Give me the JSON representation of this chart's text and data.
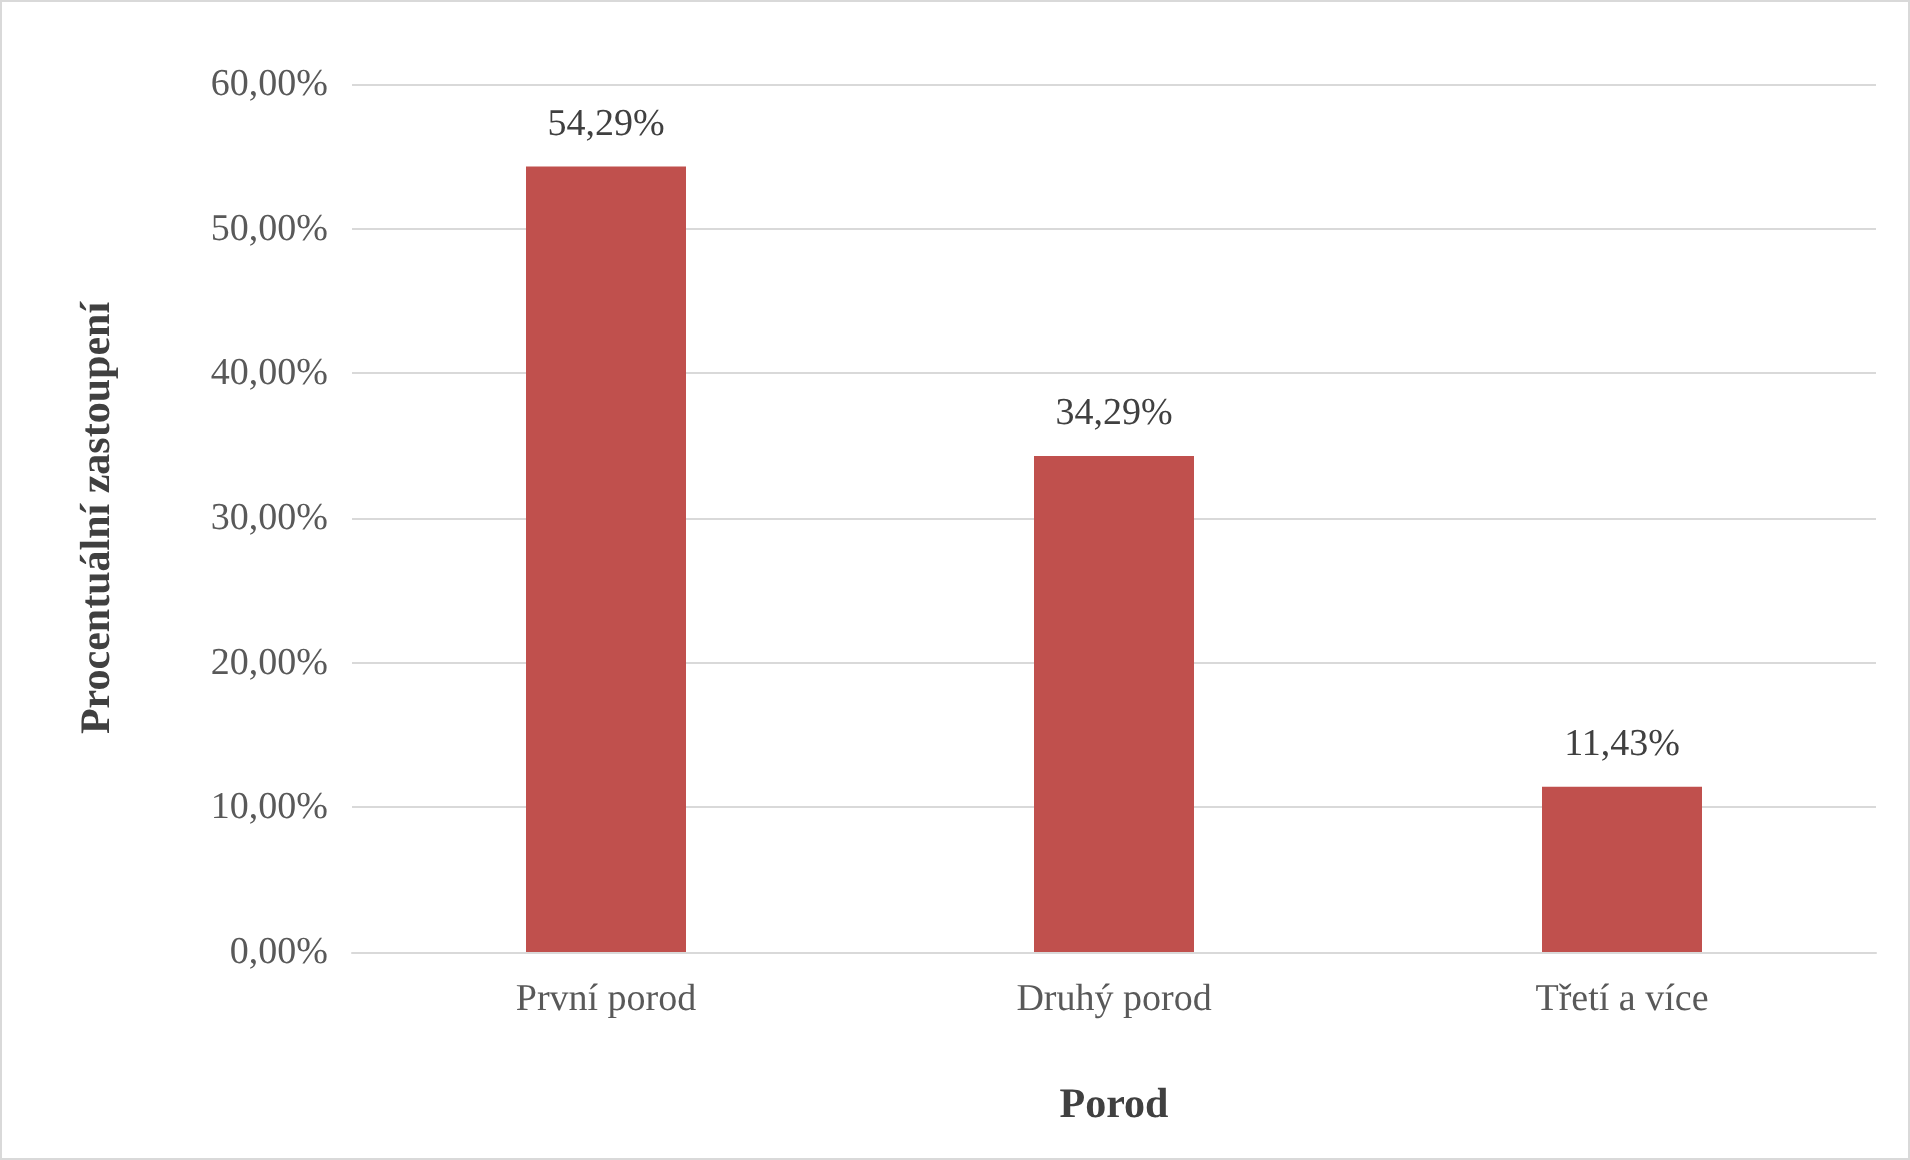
{
  "chart_data": {
    "type": "bar",
    "xlabel": "Porod",
    "ylabel": "Procentuální zastoupení",
    "categories": [
      "První porod",
      "Druhý porod",
      "Třetí a více"
    ],
    "values": [
      54.29,
      34.29,
      11.43
    ],
    "color": "#c0504d",
    "value_labels": [
      "54,29%",
      "34,29%",
      "11,43%"
    ],
    "ylim": [
      0,
      60
    ],
    "yticks": [
      {
        "value": 0,
        "label": "0,00%"
      },
      {
        "value": 10,
        "label": "10,00%"
      },
      {
        "value": 20,
        "label": "20,00%"
      },
      {
        "value": 30,
        "label": "30,00%"
      },
      {
        "value": 40,
        "label": "40,00%"
      },
      {
        "value": 50,
        "label": "50,00%"
      },
      {
        "value": 60,
        "label": "60,00%"
      }
    ],
    "grid": "y"
  }
}
